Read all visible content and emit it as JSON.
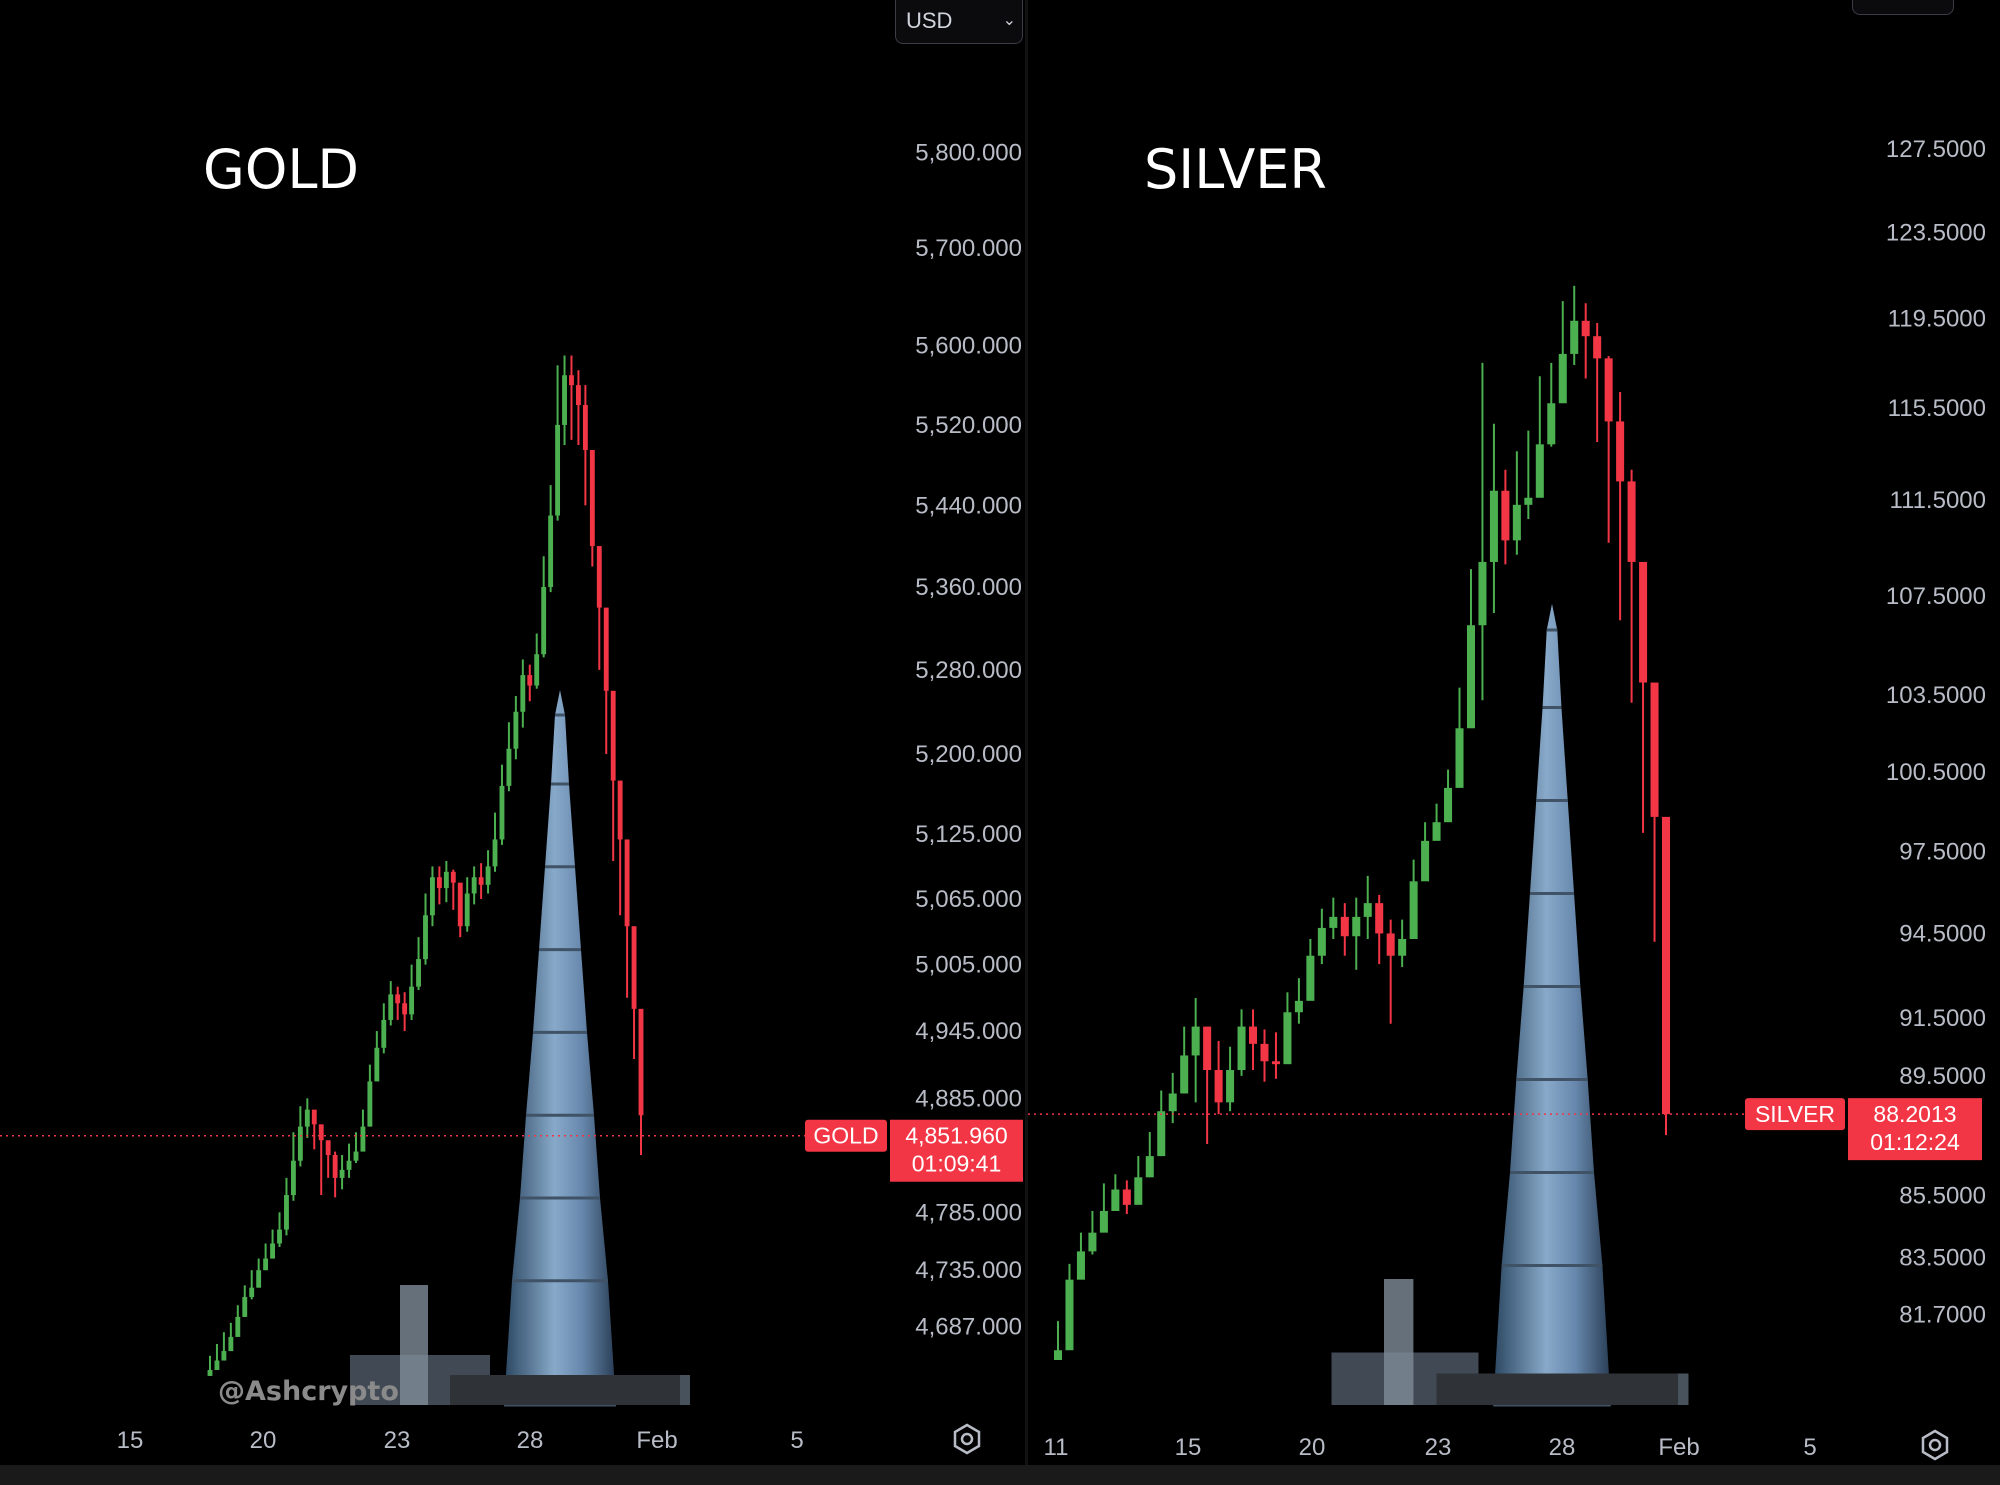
{
  "gold": {
    "title": "GOLD",
    "currency": "USD",
    "price_tag_label": "GOLD",
    "price": "4,851.960",
    "countdown": "01:09:41",
    "price_value": 4851.96,
    "watermark": "@Ashcrypto",
    "settings_icon": "settings-hexagon-icon"
  },
  "silver": {
    "title": "SILVER",
    "price_tag_label": "SILVER",
    "price": "88.2013",
    "countdown": "01:12:24",
    "price_value": 88.2013,
    "settings_icon": "settings-hexagon-icon"
  },
  "colors": {
    "up": "#4caf50",
    "down": "#f23645",
    "tag": "#f23645",
    "background": "#000000"
  },
  "chart_data": [
    {
      "type": "candlestick",
      "title": "GOLD",
      "y_tick_labels": [
        "5,800.000",
        "5,700.000",
        "5,600.000",
        "5,520.000",
        "5,440.000",
        "5,360.000",
        "5,280.000",
        "5,200.000",
        "5,125.000",
        "5,065.000",
        "5,005.000",
        "4,945.000",
        "4,885.000",
        "4,785.000",
        "4,735.000",
        "4,687.000"
      ],
      "y_ticks": [
        5800,
        5700,
        5600,
        5520,
        5440,
        5360,
        5280,
        5200,
        5125,
        5065,
        5005,
        4945,
        4885,
        4785,
        4735,
        4687
      ],
      "x_tick_labels": [
        "15",
        "20",
        "23",
        "28",
        "Feb",
        "5"
      ],
      "y_scale": "log",
      "ylim": [
        4650,
        5850
      ],
      "current_price": 4851.96,
      "candles_close": [
        4650,
        4658,
        4666,
        4678,
        4695,
        4712,
        4720,
        4735,
        4745,
        4758,
        4770,
        4800,
        4830,
        4860,
        4875,
        4862,
        4848,
        4835,
        4815,
        4822,
        4830,
        4838,
        4860,
        4900,
        4930,
        4955,
        4978,
        4970,
        4960,
        4985,
        5010,
        5050,
        5085,
        5075,
        5090,
        5080,
        5040,
        5070,
        5085,
        5078,
        5095,
        5120,
        5170,
        5205,
        5240,
        5275,
        5265,
        5295,
        5360,
        5430,
        5520,
        5570,
        5560,
        5540,
        5495,
        5400,
        5340,
        5260,
        5175,
        5120,
        5040,
        4965,
        4870
      ],
      "candles_high": [
        4662,
        4672,
        4682,
        4690,
        4705,
        4722,
        4735,
        4745,
        4758,
        4770,
        4785,
        4815,
        4855,
        4878,
        4885,
        4870,
        4860,
        4845,
        4838,
        4835,
        4845,
        4855,
        4875,
        4915,
        4945,
        4970,
        4990,
        4985,
        4980,
        5005,
        5030,
        5070,
        5095,
        5095,
        5100,
        5092,
        5075,
        5085,
        5095,
        5098,
        5110,
        5145,
        5190,
        5230,
        5255,
        5290,
        5285,
        5315,
        5390,
        5460,
        5580,
        5590,
        5590,
        5575,
        5560,
        5440,
        5390,
        5300,
        5210,
        5160,
        5080,
        5010,
        4960
      ],
      "candles_low": [
        4645,
        4650,
        4658,
        4666,
        4680,
        4695,
        4710,
        4720,
        4735,
        4745,
        4755,
        4765,
        4795,
        4825,
        4850,
        4840,
        4800,
        4815,
        4798,
        4805,
        4815,
        4828,
        4840,
        4860,
        4900,
        4925,
        4950,
        4955,
        4945,
        4955,
        4982,
        5005,
        5040,
        5060,
        5062,
        5055,
        5030,
        5035,
        5060,
        5065,
        5070,
        5090,
        5115,
        5165,
        5195,
        5225,
        5250,
        5262,
        5292,
        5355,
        5425,
        5500,
        5505,
        5500,
        5440,
        5380,
        5280,
        5200,
        5100,
        5050,
        4975,
        4920,
        4835
      ],
      "start_date": "2026-01-17",
      "last_date": "2026-01-30"
    },
    {
      "type": "candlestick",
      "title": "SILVER",
      "y_tick_labels": [
        "127.5000",
        "123.5000",
        "119.5000",
        "115.5000",
        "111.5000",
        "107.5000",
        "103.5000",
        "100.5000",
        "97.5000",
        "94.5000",
        "91.5000",
        "89.5000",
        "85.5000",
        "83.5000",
        "81.7000"
      ],
      "y_ticks": [
        127.5,
        123.5,
        119.5,
        115.5,
        111.5,
        107.5,
        103.5,
        100.5,
        97.5,
        94.5,
        91.5,
        89.5,
        85.5,
        83.5,
        81.7
      ],
      "x_tick_labels": [
        "11",
        "15",
        "20",
        "23",
        "28",
        "Feb",
        "5"
      ],
      "y_scale": "log",
      "ylim": [
        80.3,
        130.0
      ],
      "current_price": 88.2013,
      "candles_close": [
        80.6,
        82.8,
        83.7,
        84.3,
        85.0,
        85.7,
        85.2,
        86.1,
        86.8,
        88.3,
        88.9,
        90.2,
        91.2,
        89.7,
        88.6,
        89.7,
        91.2,
        90.6,
        90.0,
        89.9,
        91.7,
        92.1,
        93.7,
        94.7,
        95.1,
        94.4,
        95.1,
        95.6,
        94.5,
        93.7,
        94.3,
        96.4,
        97.9,
        98.6,
        99.9,
        102.2,
        106.3,
        108.9,
        111.9,
        109.8,
        111.3,
        111.6,
        113.9,
        115.7,
        117.9,
        119.4,
        118.7,
        117.7,
        114.9,
        112.3,
        108.9,
        104.0,
        98.8,
        88.2
      ],
      "candles_high": [
        81.5,
        83.3,
        84.3,
        85.0,
        85.9,
        86.2,
        86.0,
        86.8,
        87.6,
        89.0,
        89.6,
        91.2,
        92.2,
        91.1,
        90.7,
        90.5,
        91.8,
        91.8,
        91.1,
        91.0,
        92.4,
        92.9,
        94.3,
        95.4,
        95.8,
        95.6,
        95.8,
        96.6,
        95.9,
        95.0,
        95.0,
        97.2,
        98.6,
        99.3,
        100.6,
        103.8,
        108.6,
        117.5,
        114.8,
        112.8,
        113.6,
        114.5,
        116.9,
        117.5,
        120.3,
        121.0,
        120.2,
        119.3,
        117.8,
        116.2,
        112.8,
        108.6,
        102.4,
        95.4
      ],
      "candles_low": [
        80.3,
        80.7,
        82.9,
        83.6,
        84.4,
        85.0,
        84.9,
        85.4,
        86.1,
        86.8,
        87.9,
        88.9,
        88.6,
        87.2,
        88.2,
        88.3,
        89.5,
        89.7,
        89.3,
        89.4,
        90.3,
        91.3,
        92.7,
        93.4,
        94.3,
        93.7,
        93.2,
        94.3,
        93.4,
        91.3,
        93.3,
        94.4,
        96.6,
        98.2,
        99.1,
        100.0,
        104.5,
        103.3,
        106.8,
        108.8,
        109.2,
        110.7,
        112.5,
        113.8,
        115.9,
        117.4,
        116.8,
        114.0,
        109.7,
        106.5,
        103.2,
        98.2,
        94.2,
        87.5
      ],
      "start_date": "2026-01-09",
      "last_date": "2026-01-30"
    }
  ]
}
